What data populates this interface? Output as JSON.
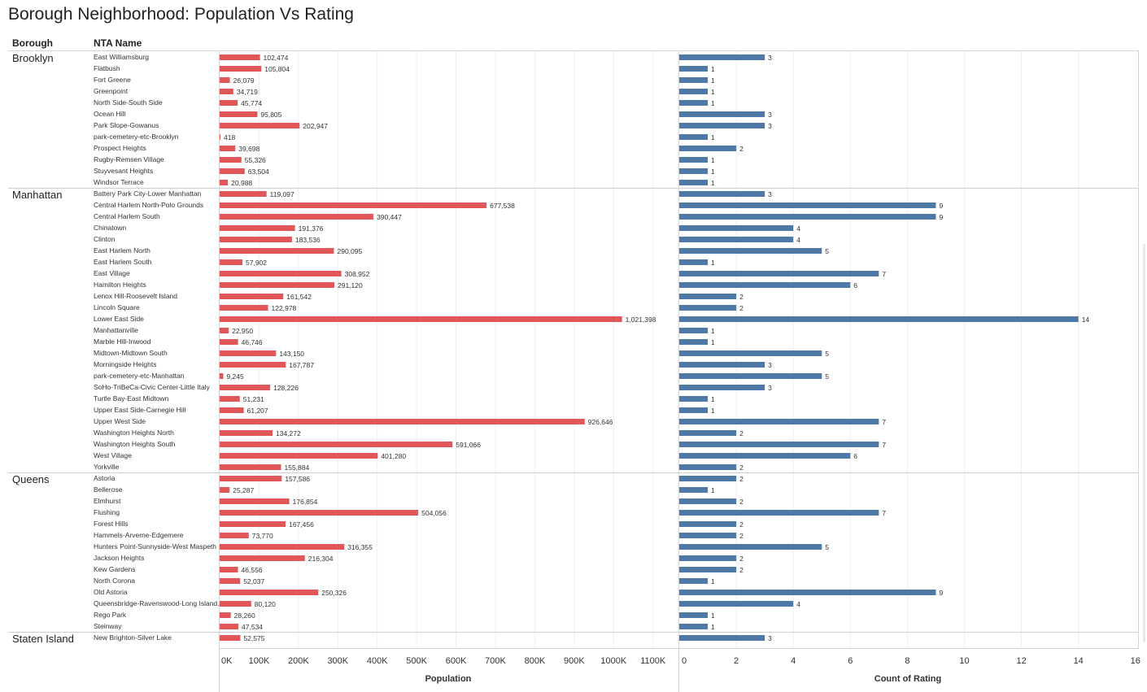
{
  "title": "Borough Neighborhood: Population Vs Rating",
  "headers": {
    "borough": "Borough",
    "nta": "NTA Name"
  },
  "colors": {
    "population": "#e15759",
    "rating": "#4e79a7"
  },
  "chart_data": {
    "type": "bar",
    "orientation": "horizontal",
    "title": "Borough Neighborhood: Population Vs Rating",
    "panels": [
      {
        "name": "Population",
        "xlabel": "Population",
        "xlim": [
          0,
          1150000
        ],
        "ticks": [
          0,
          100000,
          200000,
          300000,
          400000,
          500000,
          600000,
          700000,
          800000,
          900000,
          1000000,
          1100000
        ],
        "tick_labels": [
          "0K",
          "100K",
          "200K",
          "300K",
          "400K",
          "500K",
          "600K",
          "700K",
          "800K",
          "900K",
          "1000K",
          "1100K"
        ],
        "grid": true
      },
      {
        "name": "Count of Rating",
        "xlabel": "Count of Rating",
        "xlim": [
          0,
          16
        ],
        "ticks": [
          0,
          2,
          4,
          6,
          8,
          10,
          12,
          14,
          16
        ],
        "tick_labels": [
          "0",
          "2",
          "4",
          "6",
          "8",
          "10",
          "12",
          "14",
          "16"
        ],
        "grid": true
      }
    ],
    "groups": [
      {
        "borough": "Brooklyn",
        "rows": [
          {
            "name": "East Williamsburg",
            "population": 102474,
            "population_label": "102,474",
            "rating": 3
          },
          {
            "name": "Flatbush",
            "population": 105804,
            "population_label": "105,804",
            "rating": 1
          },
          {
            "name": "Fort Greene",
            "population": 26079,
            "population_label": "26,079",
            "rating": 1
          },
          {
            "name": "Greenpoint",
            "population": 34719,
            "population_label": "34,719",
            "rating": 1
          },
          {
            "name": "North Side-South Side",
            "population": 45774,
            "population_label": "45,774",
            "rating": 1
          },
          {
            "name": "Ocean Hill",
            "population": 95805,
            "population_label": "95,805",
            "rating": 3
          },
          {
            "name": "Park Slope-Gowanus",
            "population": 202947,
            "population_label": "202,947",
            "rating": 3
          },
          {
            "name": "park-cemetery-etc-Brooklyn",
            "population": 418,
            "population_label": "418",
            "rating": 1
          },
          {
            "name": "Prospect Heights",
            "population": 39698,
            "population_label": "39,698",
            "rating": 2
          },
          {
            "name": "Rugby-Remsen Village",
            "population": 55326,
            "population_label": "55,326",
            "rating": 1
          },
          {
            "name": "Stuyvesant Heights",
            "population": 63504,
            "population_label": "63,504",
            "rating": 1
          },
          {
            "name": "Windsor Terrace",
            "population": 20988,
            "population_label": "20,988",
            "rating": 1
          }
        ]
      },
      {
        "borough": "Manhattan",
        "rows": [
          {
            "name": "Battery Park City-Lower Manhattan",
            "population": 119097,
            "population_label": "119,097",
            "rating": 3
          },
          {
            "name": "Central Harlem North-Polo Grounds",
            "population": 677538,
            "population_label": "677,538",
            "rating": 9
          },
          {
            "name": "Central Harlem South",
            "population": 390447,
            "population_label": "390,447",
            "rating": 9
          },
          {
            "name": "Chinatown",
            "population": 191376,
            "population_label": "191,376",
            "rating": 4
          },
          {
            "name": "Clinton",
            "population": 183536,
            "population_label": "183,536",
            "rating": 4
          },
          {
            "name": "East Harlem North",
            "population": 290095,
            "population_label": "290,095",
            "rating": 5
          },
          {
            "name": "East Harlem South",
            "population": 57902,
            "population_label": "57,902",
            "rating": 1
          },
          {
            "name": "East Village",
            "population": 308952,
            "population_label": "308,952",
            "rating": 7
          },
          {
            "name": "Hamilton Heights",
            "population": 291120,
            "population_label": "291,120",
            "rating": 6
          },
          {
            "name": "Lenox Hill-Roosevelt Island",
            "population": 161542,
            "population_label": "161,542",
            "rating": 2
          },
          {
            "name": "Lincoln Square",
            "population": 122978,
            "population_label": "122,978",
            "rating": 2
          },
          {
            "name": "Lower East Side",
            "population": 1021398,
            "population_label": "1,021,398",
            "rating": 14
          },
          {
            "name": "Manhattanville",
            "population": 22950,
            "population_label": "22,950",
            "rating": 1
          },
          {
            "name": "Marble Hill-Inwood",
            "population": 46746,
            "population_label": "46,746",
            "rating": 1
          },
          {
            "name": "Midtown-Midtown South",
            "population": 143150,
            "population_label": "143,150",
            "rating": 5
          },
          {
            "name": "Morningside Heights",
            "population": 167787,
            "population_label": "167,787",
            "rating": 3
          },
          {
            "name": "park-cemetery-etc-Manhattan",
            "population": 9245,
            "population_label": "9,245",
            "rating": 5
          },
          {
            "name": "SoHo-TriBeCa-Civic Center-Little Italy",
            "population": 128226,
            "population_label": "128,226",
            "rating": 3
          },
          {
            "name": "Turtle Bay-East Midtown",
            "population": 51231,
            "population_label": "51,231",
            "rating": 1
          },
          {
            "name": "Upper East Side-Carnegie Hill",
            "population": 61207,
            "population_label": "61,207",
            "rating": 1
          },
          {
            "name": "Upper West Side",
            "population": 926646,
            "population_label": "926,646",
            "rating": 7
          },
          {
            "name": "Washington Heights North",
            "population": 134272,
            "population_label": "134,272",
            "rating": 2
          },
          {
            "name": "Washington Heights South",
            "population": 591066,
            "population_label": "591,066",
            "rating": 7
          },
          {
            "name": "West Village",
            "population": 401280,
            "population_label": "401,280",
            "rating": 6
          },
          {
            "name": "Yorkville",
            "population": 155884,
            "population_label": "155,884",
            "rating": 2
          }
        ]
      },
      {
        "borough": "Queens",
        "rows": [
          {
            "name": "Astoria",
            "population": 157586,
            "population_label": "157,586",
            "rating": 2
          },
          {
            "name": "Bellerose",
            "population": 25287,
            "population_label": "25,287",
            "rating": 1
          },
          {
            "name": "Elmhurst",
            "population": 176854,
            "population_label": "176,854",
            "rating": 2
          },
          {
            "name": "Flushing",
            "population": 504056,
            "population_label": "504,056",
            "rating": 7
          },
          {
            "name": "Forest Hills",
            "population": 167456,
            "population_label": "167,456",
            "rating": 2
          },
          {
            "name": "Hammels-Arverne-Edgemere",
            "population": 73770,
            "population_label": "73,770",
            "rating": 2
          },
          {
            "name": "Hunters Point-Sunnyside-West Maspeth",
            "population": 316355,
            "population_label": "316,355",
            "rating": 5
          },
          {
            "name": "Jackson Heights",
            "population": 216304,
            "population_label": "216,304",
            "rating": 2
          },
          {
            "name": "Kew Gardens",
            "population": 46556,
            "population_label": "46,556",
            "rating": 2
          },
          {
            "name": "North Corona",
            "population": 52037,
            "population_label": "52,037",
            "rating": 1
          },
          {
            "name": "Old Astoria",
            "population": 250326,
            "population_label": "250,326",
            "rating": 9
          },
          {
            "name": "Queensbridge-Ravenswood-Long Island..",
            "population": 80120,
            "population_label": "80,120",
            "rating": 4
          },
          {
            "name": "Rego Park",
            "population": 28260,
            "population_label": "28,260",
            "rating": 1
          },
          {
            "name": "Steinway",
            "population": 47534,
            "population_label": "47,534",
            "rating": 1
          }
        ]
      },
      {
        "borough": "Staten Island",
        "rows": [
          {
            "name": "New Brighton-Silver Lake",
            "population": 52575,
            "population_label": "52,575",
            "rating": 3
          }
        ]
      }
    ]
  }
}
